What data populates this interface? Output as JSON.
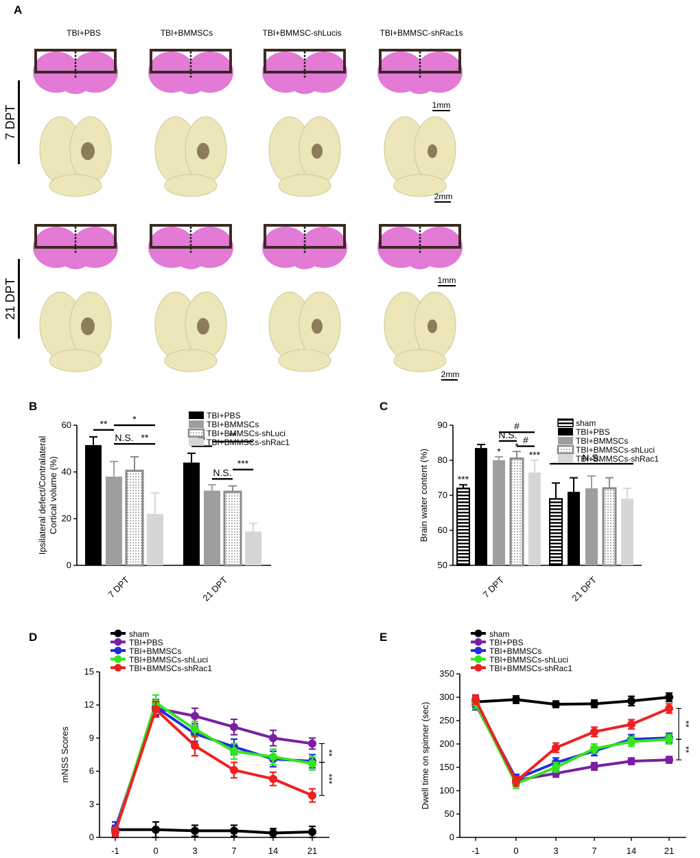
{
  "panelA": {
    "letter": "A",
    "columns": [
      "TBI+PBS",
      "TBI+BMMSCs",
      "TBI+BMMSC-shLucis",
      "TBI+BMMSC-shRac1s"
    ],
    "rows": [
      {
        "label": "7 DPT",
        "scale_section": "1mm",
        "scale_brain": "2mm"
      },
      {
        "label": "21 DPT",
        "scale_section": "1mm",
        "scale_brain": "2mm"
      }
    ],
    "colors": {
      "section": "#e27ad6",
      "brain": "#ece6b8",
      "lesion": "#6b5a3a",
      "box": "#3a2a22"
    }
  },
  "chart_data": [
    {
      "panel": "B",
      "type": "bar",
      "ylabel": "Ipsilateral defect/Contralateral\nCortical volume (%)",
      "ylim": [
        0,
        60
      ],
      "yticks": [
        "0",
        "20",
        "40",
        "60"
      ],
      "categories": [
        "7 DPT",
        "21 DPT"
      ],
      "series": [
        {
          "name": "TBI+PBS",
          "values": [
            51.5,
            44
          ],
          "errors": [
            3.5,
            4
          ],
          "color": "#000000",
          "pattern": "solid"
        },
        {
          "name": "TBI+BMMSCs",
          "values": [
            38,
            32
          ],
          "errors": [
            6.5,
            2.5
          ],
          "color": "#9e9e9e",
          "pattern": "solid"
        },
        {
          "name": "TBI+BMMSCs-shLuci",
          "values": [
            40.5,
            31.5
          ],
          "errors": [
            6,
            2.5
          ],
          "color": "#8a8a8a",
          "pattern": "dots"
        },
        {
          "name": "TBI+BMMSCs-shRac1",
          "values": [
            22,
            14.5
          ],
          "errors": [
            9,
            3.5
          ],
          "color": "#d6d6d6",
          "pattern": "solid"
        }
      ],
      "significance": [
        {
          "text": "**",
          "group": 0,
          "from": 0,
          "to": 1,
          "y": 58
        },
        {
          "text": "*",
          "group": 0,
          "from": 1,
          "to": 3,
          "y": 60
        },
        {
          "text": "N.S.",
          "group": 0,
          "from": 1,
          "to": 2,
          "y": 52
        },
        {
          "text": "**",
          "group": 0,
          "from": 2,
          "to": 3,
          "y": 52
        },
        {
          "text": "**",
          "group": 1,
          "from": 0,
          "to": 1,
          "y": 51
        },
        {
          "text": "**",
          "group": 1,
          "from": 1,
          "to": 3,
          "y": 53
        },
        {
          "text": "N.S.",
          "group": 1,
          "from": 1,
          "to": 2,
          "y": 37
        },
        {
          "text": "***",
          "group": 1,
          "from": 2,
          "to": 3,
          "y": 41
        }
      ]
    },
    {
      "panel": "C",
      "type": "bar",
      "ylabel": "Brain water content (%)",
      "ylim": [
        50,
        90
      ],
      "yticks": [
        "50",
        "60",
        "70",
        "80",
        "90"
      ],
      "categories": [
        "7 DPT",
        "21 DPT"
      ],
      "series": [
        {
          "name": "sham",
          "values": [
            72,
            69
          ],
          "errors": [
            1,
            4.5
          ],
          "color": "#000000",
          "pattern": "hstripe"
        },
        {
          "name": "TBI+PBS",
          "values": [
            83.5,
            71
          ],
          "errors": [
            1,
            4
          ],
          "color": "#000000",
          "pattern": "solid"
        },
        {
          "name": "TBI+BMMSCs",
          "values": [
            80,
            72
          ],
          "errors": [
            1,
            3.5
          ],
          "color": "#9e9e9e",
          "pattern": "solid"
        },
        {
          "name": "TBI+BMMSCs-shLuci",
          "values": [
            80.5,
            72
          ],
          "errors": [
            2,
            3
          ],
          "color": "#8a8a8a",
          "pattern": "dots"
        },
        {
          "name": "TBI+BMMSCs-shRac1",
          "values": [
            76.5,
            69
          ],
          "errors": [
            3.5,
            3
          ],
          "color": "#d6d6d6",
          "pattern": "solid"
        }
      ],
      "bar_labels": [
        {
          "text": "***",
          "group": 0,
          "index": 0
        },
        {
          "text": "*",
          "group": 0,
          "index": 2
        },
        {
          "text": "*",
          "group": 0,
          "index": 3
        },
        {
          "text": "***",
          "group": 0,
          "index": 4
        }
      ],
      "significance": [
        {
          "text": "#",
          "group": 0,
          "from": 2,
          "to": 4,
          "y": 88
        },
        {
          "text": "N.S.",
          "group": 0,
          "from": 2,
          "to": 3,
          "y": 85.5
        },
        {
          "text": "#",
          "group": 0,
          "from": 3,
          "to": 4,
          "y": 84
        },
        {
          "text": "N.S.",
          "span": true,
          "y": 79
        }
      ]
    },
    {
      "panel": "D",
      "type": "line",
      "ylabel": "mNSS Scores",
      "ylim": [
        0,
        15
      ],
      "yticks": [
        "0",
        "3",
        "6",
        "9",
        "12",
        "15"
      ],
      "x": [
        "-1",
        "0",
        "3",
        "7",
        "14",
        "21"
      ],
      "series": [
        {
          "name": "sham",
          "values": [
            0.7,
            0.7,
            0.6,
            0.6,
            0.4,
            0.5
          ],
          "errors": [
            0.7,
            0.7,
            0.5,
            0.5,
            0.4,
            0.5
          ],
          "color": "#000000"
        },
        {
          "name": "TBI+PBS",
          "values": [
            0.6,
            11.7,
            11.0,
            10.0,
            9.0,
            8.5
          ],
          "errors": [
            0.5,
            0.7,
            0.7,
            0.7,
            0.7,
            0.5
          ],
          "color": "#7a1fa2"
        },
        {
          "name": "TBI+BMMSCs",
          "values": [
            0.8,
            11.8,
            9.4,
            8.2,
            7.1,
            6.9
          ],
          "errors": [
            0.6,
            0.7,
            0.7,
            0.7,
            0.7,
            0.6
          ],
          "color": "#1f2ee0"
        },
        {
          "name": "TBI+BMMSCs-shLuci",
          "values": [
            0.5,
            12.2,
            9.8,
            7.8,
            7.3,
            6.7
          ],
          "errors": [
            0.4,
            0.7,
            0.7,
            0.7,
            0.7,
            0.6
          ],
          "color": "#33e61a"
        },
        {
          "name": "TBI+BMMSCs-shRac1",
          "values": [
            0.5,
            11.6,
            8.3,
            6.1,
            5.3,
            3.8
          ],
          "errors": [
            0.4,
            0.7,
            0.9,
            0.7,
            0.6,
            0.6
          ],
          "color": "#ee2020"
        }
      ],
      "brackets": [
        {
          "text": "**",
          "from": 8.5,
          "to": 6.8
        },
        {
          "text": "***",
          "from": 6.8,
          "to": 3.8
        }
      ]
    },
    {
      "panel": "E",
      "type": "line",
      "ylabel": "Dwell time on spinner (sec)",
      "ylim": [
        0,
        350
      ],
      "yticks": [
        "0",
        "50",
        "100",
        "150",
        "200",
        "250",
        "300",
        "350"
      ],
      "x": [
        "-1",
        "0",
        "3",
        "7",
        "14",
        "21"
      ],
      "series": [
        {
          "name": "sham",
          "values": [
            290,
            295,
            285,
            286,
            292,
            300
          ],
          "errors": [
            7,
            8,
            7,
            8,
            10,
            9
          ],
          "color": "#000000"
        },
        {
          "name": "TBI+PBS",
          "values": [
            285,
            122,
            137,
            152,
            163,
            166
          ],
          "errors": [
            12,
            10,
            8,
            8,
            7,
            7
          ],
          "color": "#7a1fa2"
        },
        {
          "name": "TBI+BMMSCs",
          "values": [
            290,
            125,
            160,
            185,
            210,
            213
          ],
          "errors": [
            12,
            10,
            10,
            10,
            10,
            10
          ],
          "color": "#1f2ee0"
        },
        {
          "name": "TBI+BMMSCs-shLuci",
          "values": [
            288,
            115,
            150,
            190,
            205,
            210
          ],
          "errors": [
            12,
            10,
            10,
            10,
            10,
            10
          ],
          "color": "#33e61a"
        },
        {
          "name": "TBI+BMMSCs-shRac1",
          "values": [
            295,
            120,
            192,
            226,
            242,
            276
          ],
          "errors": [
            10,
            10,
            10,
            10,
            10,
            10
          ],
          "color": "#ee2020"
        }
      ],
      "brackets": [
        {
          "text": "**",
          "from": 276,
          "to": 210
        },
        {
          "text": "**",
          "from": 210,
          "to": 166
        }
      ]
    }
  ]
}
